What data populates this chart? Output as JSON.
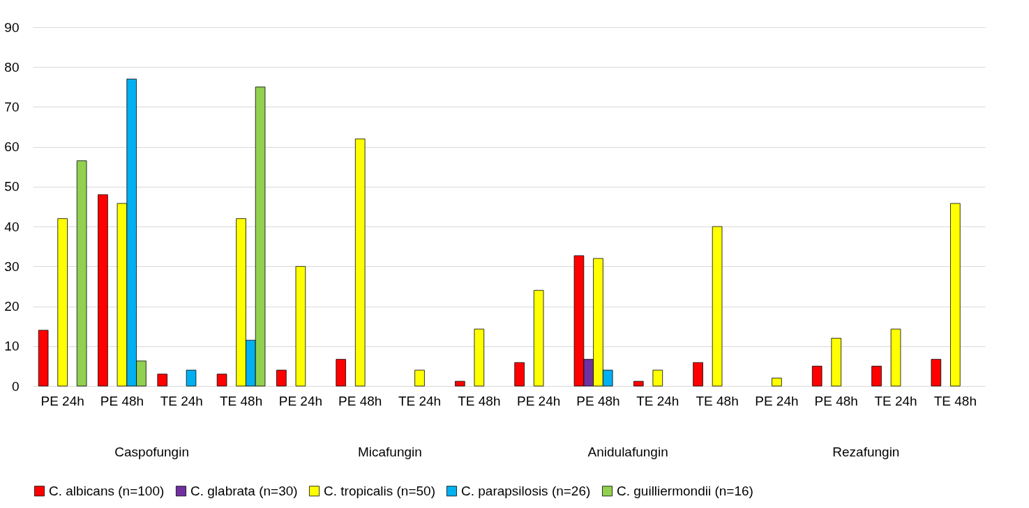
{
  "chart_data": {
    "type": "bar",
    "categories": [
      "PE 24h",
      "PE 48h",
      "TE 24h",
      "TE 48h",
      "PE 24h",
      "PE 48h",
      "TE 24h",
      "TE 48h",
      "PE 24h",
      "PE 48h",
      "TE 24h",
      "TE 48h",
      "PE 24h",
      "PE 48h",
      "TE 24h",
      "TE 48h"
    ],
    "annotations": [
      "Caspofungin",
      "Micafungin",
      "Anidulafungin",
      "Rezafungin"
    ],
    "series": [
      {
        "name": "C. albicans (n=100)",
        "color": "#ff0000",
        "values": [
          14,
          48,
          3,
          3,
          4,
          6.7,
          null,
          1.2,
          5.9,
          32.7,
          1.2,
          5.9,
          null,
          5,
          5,
          6.7
        ]
      },
      {
        "name": "C. glabrata (n=30)",
        "color": "#7030a0",
        "values": [
          null,
          null,
          null,
          null,
          null,
          null,
          null,
          null,
          null,
          6.7,
          null,
          null,
          null,
          null,
          null,
          null
        ]
      },
      {
        "name": "C. tropicalis (n=50)",
        "color": "#ffff00",
        "values": [
          42,
          45.8,
          null,
          42,
          30,
          62,
          4,
          14.3,
          24,
          32,
          4,
          40,
          2,
          12,
          14.3,
          45.8
        ]
      },
      {
        "name": "C. parapsilosis (n=26)",
        "color": "#00b0f0",
        "values": [
          null,
          77,
          4,
          11.5,
          null,
          null,
          null,
          null,
          null,
          4,
          null,
          null,
          null,
          null,
          null,
          null
        ]
      },
      {
        "name": "C. guilliermondii (n=16)",
        "color": "#92d050",
        "values": [
          56.5,
          6.3,
          null,
          75,
          null,
          null,
          null,
          null,
          null,
          null,
          null,
          null,
          null,
          null,
          null,
          null
        ]
      }
    ],
    "ylim": [
      0,
      90
    ],
    "yticks": [
      0,
      10,
      20,
      30,
      40,
      50,
      60,
      70,
      80,
      90
    ],
    "grid": "y",
    "legend": "bottom"
  }
}
